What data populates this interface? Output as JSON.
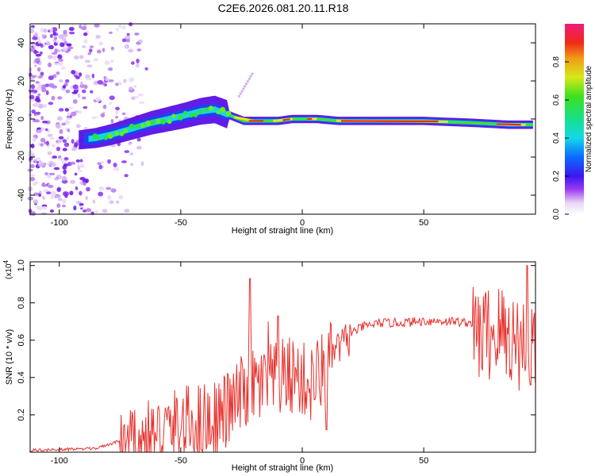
{
  "chart_data": [
    {
      "type": "heatmap",
      "title": "C2E6.2026.081.20.11.R18",
      "xlabel": "Height of straight line (km)",
      "ylabel": "Frequency (Hz)",
      "xlim": [
        -112,
        96
      ],
      "ylim": [
        -50,
        50
      ],
      "xticks": [
        -100,
        -50,
        0,
        50
      ],
      "yticks": [
        -40,
        -20,
        0,
        20,
        40
      ],
      "track": {
        "x": [
          -92,
          -85,
          -78,
          -70,
          -62,
          -55,
          -48,
          -42,
          -36,
          -30,
          -24,
          -18,
          -10,
          -4,
          0,
          6,
          15,
          30,
          50,
          70,
          85,
          94
        ],
        "frequency": [
          -11,
          -10,
          -8,
          -5,
          -2,
          0,
          2,
          4,
          5,
          2,
          -1,
          -1,
          -1,
          0,
          0,
          0,
          -1,
          -1,
          -1,
          -2,
          -3,
          -3
        ]
      },
      "colorbar": {
        "label": "Normalized spectral amplitude",
        "range": [
          0,
          1
        ],
        "ticks": [
          "0.0",
          "0.2",
          "0.4",
          "0.6",
          "0.8"
        ]
      }
    },
    {
      "type": "line",
      "title": "",
      "xlabel": "Height of straight line (km)",
      "ylabel": "SNR (10 * v/v)",
      "multiplier": "(x10",
      "multiplier_exp": "4",
      "xlim": [
        -112,
        96
      ],
      "ylim": [
        0,
        1.02
      ],
      "xticks": [
        -100,
        -50,
        0,
        50
      ],
      "yticks": [
        0.2,
        0.4,
        0.6,
        0.8,
        1.0
      ],
      "color": "#e8322e",
      "envelope": {
        "x": [
          -112,
          -85,
          -75,
          -65,
          -55,
          -45,
          -35,
          -28,
          -22,
          -15,
          -8,
          -3,
          3,
          8,
          12,
          18,
          25,
          32,
          40,
          50,
          60,
          70,
          76,
          82,
          88,
          96
        ],
        "y": [
          0.01,
          0.02,
          0.06,
          0.12,
          0.18,
          0.22,
          0.25,
          0.32,
          0.42,
          0.42,
          0.46,
          0.48,
          0.42,
          0.5,
          0.55,
          0.63,
          0.68,
          0.7,
          0.7,
          0.71,
          0.71,
          0.7,
          0.72,
          0.73,
          0.68,
          0.66
        ]
      },
      "peaks": [
        {
          "x": -21.5,
          "y": 0.93
        },
        {
          "x": -14,
          "y": 0.7
        },
        {
          "x": -10,
          "y": 0.73
        },
        {
          "x": 10,
          "y": 0.12
        },
        {
          "x": 92.5,
          "y": 1.0
        },
        {
          "x": 94,
          "y": 0.36
        }
      ]
    }
  ]
}
